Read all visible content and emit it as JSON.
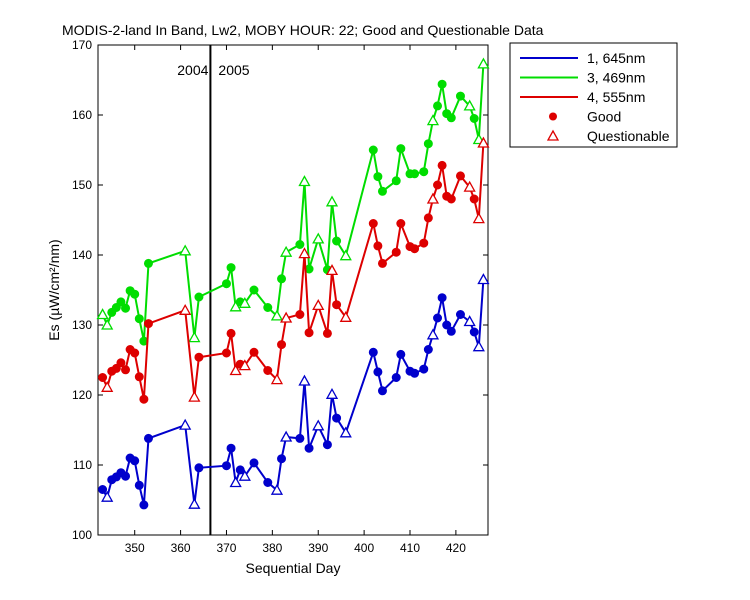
{
  "chart_data": {
    "type": "line",
    "title": "MODIS-2-land In Band,  Lw2, MOBY HOUR: 22;  Good and Questionable Data",
    "xlabel": "Sequential Day",
    "ylabel": "Es (µW/cm²/nm)",
    "xlim": [
      342,
      427
    ],
    "ylim": [
      100,
      170
    ],
    "xticks": [
      350,
      360,
      370,
      380,
      390,
      400,
      410,
      420
    ],
    "yticks": [
      100,
      110,
      120,
      130,
      140,
      150,
      160,
      170
    ],
    "grid": false,
    "year_divider": {
      "x": 366.5,
      "left_label": "2004",
      "right_label": "2005"
    },
    "legend": {
      "position": "outside-top-right",
      "entries": [
        {
          "label": "1, 645nm",
          "kind": "line",
          "color": "#0000cc"
        },
        {
          "label": "3, 469nm",
          "kind": "line",
          "color": "#00dd00"
        },
        {
          "label": "4, 555nm",
          "kind": "line",
          "color": "#dd0000"
        },
        {
          "label": "Good",
          "kind": "dot",
          "color": "#dd0000"
        },
        {
          "label": "Questionable",
          "kind": "triangle",
          "color": "#dd0000"
        }
      ]
    },
    "series": [
      {
        "name": "1, 645nm",
        "color": "#0000cc",
        "points": [
          [
            343,
            106.5,
            "G"
          ],
          [
            344,
            105.4,
            "Q"
          ],
          [
            345,
            107.9,
            "G"
          ],
          [
            346,
            108.3,
            "G"
          ],
          [
            347,
            108.9,
            "G"
          ],
          [
            348,
            108.4,
            "G"
          ],
          [
            349,
            111.0,
            "G"
          ],
          [
            350,
            110.6,
            "G"
          ],
          [
            351,
            107.1,
            "G"
          ],
          [
            352,
            104.3,
            "G"
          ],
          [
            353,
            113.8,
            "G"
          ],
          [
            361,
            115.7,
            "Q"
          ],
          [
            363,
            104.4,
            "Q"
          ],
          [
            364,
            109.6,
            "G"
          ],
          [
            370,
            109.9,
            "G"
          ],
          [
            371,
            112.4,
            "G"
          ],
          [
            372,
            107.5,
            "Q"
          ],
          [
            373,
            109.3,
            "G"
          ],
          [
            374,
            108.4,
            "Q"
          ],
          [
            376,
            110.3,
            "G"
          ],
          [
            379,
            107.5,
            "G"
          ],
          [
            381,
            106.4,
            "Q"
          ],
          [
            382,
            110.9,
            "G"
          ],
          [
            383,
            114.0,
            "Q"
          ],
          [
            386,
            113.8,
            "G"
          ],
          [
            387,
            122.0,
            "Q"
          ],
          [
            388,
            112.4,
            "G"
          ],
          [
            390,
            115.6,
            "Q"
          ],
          [
            392,
            112.9,
            "G"
          ],
          [
            393,
            120.1,
            "Q"
          ],
          [
            394,
            116.7,
            "G"
          ],
          [
            396,
            114.6,
            "Q"
          ],
          [
            402,
            126.1,
            "G"
          ],
          [
            403,
            123.3,
            "G"
          ],
          [
            404,
            120.6,
            "G"
          ],
          [
            407,
            122.5,
            "G"
          ],
          [
            408,
            125.8,
            "G"
          ],
          [
            410,
            123.4,
            "G"
          ],
          [
            411,
            123.1,
            "G"
          ],
          [
            413,
            123.7,
            "G"
          ],
          [
            414,
            126.5,
            "G"
          ],
          [
            415,
            128.6,
            "Q"
          ],
          [
            416,
            131.0,
            "G"
          ],
          [
            417,
            133.9,
            "G"
          ],
          [
            418,
            130.0,
            "G"
          ],
          [
            419,
            129.1,
            "G"
          ],
          [
            421,
            131.5,
            "G"
          ],
          [
            423,
            130.5,
            "Q"
          ],
          [
            424,
            129.0,
            "G"
          ],
          [
            425,
            126.9,
            "Q"
          ],
          [
            426,
            136.5,
            "Q"
          ]
        ]
      },
      {
        "name": "3, 469nm",
        "color": "#00dd00",
        "points": [
          [
            343,
            131.5,
            "Q"
          ],
          [
            344,
            130.0,
            "Q"
          ],
          [
            345,
            131.8,
            "G"
          ],
          [
            346,
            132.5,
            "G"
          ],
          [
            347,
            133.3,
            "G"
          ],
          [
            348,
            132.4,
            "G"
          ],
          [
            349,
            134.9,
            "G"
          ],
          [
            350,
            134.4,
            "G"
          ],
          [
            351,
            130.9,
            "G"
          ],
          [
            352,
            127.7,
            "G"
          ],
          [
            353,
            138.8,
            "G"
          ],
          [
            361,
            140.6,
            "Q"
          ],
          [
            363,
            128.2,
            "Q"
          ],
          [
            364,
            134.0,
            "G"
          ],
          [
            370,
            135.9,
            "G"
          ],
          [
            371,
            138.2,
            "G"
          ],
          [
            372,
            132.6,
            "Q"
          ],
          [
            373,
            133.3,
            "G"
          ],
          [
            374,
            133.1,
            "Q"
          ],
          [
            376,
            135.0,
            "G"
          ],
          [
            379,
            132.5,
            "G"
          ],
          [
            381,
            131.3,
            "Q"
          ],
          [
            382,
            136.6,
            "G"
          ],
          [
            383,
            140.4,
            "Q"
          ],
          [
            386,
            141.5,
            "G"
          ],
          [
            387,
            150.5,
            "Q"
          ],
          [
            388,
            138.0,
            "G"
          ],
          [
            390,
            142.3,
            "Q"
          ],
          [
            392,
            137.9,
            "G"
          ],
          [
            393,
            147.6,
            "Q"
          ],
          [
            394,
            142.0,
            "G"
          ],
          [
            396,
            139.9,
            "Q"
          ],
          [
            402,
            155.0,
            "G"
          ],
          [
            403,
            151.2,
            "G"
          ],
          [
            404,
            149.1,
            "G"
          ],
          [
            407,
            150.6,
            "G"
          ],
          [
            408,
            155.2,
            "G"
          ],
          [
            410,
            151.6,
            "G"
          ],
          [
            411,
            151.6,
            "G"
          ],
          [
            413,
            151.9,
            "G"
          ],
          [
            414,
            155.9,
            "G"
          ],
          [
            415,
            159.2,
            "Q"
          ],
          [
            416,
            161.3,
            "G"
          ],
          [
            417,
            164.4,
            "G"
          ],
          [
            418,
            160.2,
            "G"
          ],
          [
            419,
            159.6,
            "G"
          ],
          [
            421,
            162.7,
            "G"
          ],
          [
            423,
            161.3,
            "Q"
          ],
          [
            424,
            159.5,
            "G"
          ],
          [
            425,
            156.5,
            "Q"
          ],
          [
            426,
            167.3,
            "Q"
          ]
        ]
      },
      {
        "name": "4, 555nm",
        "color": "#dd0000",
        "points": [
          [
            343,
            122.5,
            "G"
          ],
          [
            344,
            121.1,
            "Q"
          ],
          [
            345,
            123.4,
            "G"
          ],
          [
            346,
            123.8,
            "G"
          ],
          [
            347,
            124.6,
            "G"
          ],
          [
            348,
            123.6,
            "G"
          ],
          [
            349,
            126.5,
            "G"
          ],
          [
            350,
            126.0,
            "G"
          ],
          [
            351,
            122.6,
            "G"
          ],
          [
            352,
            119.4,
            "G"
          ],
          [
            353,
            130.2,
            "G"
          ],
          [
            361,
            132.1,
            "Q"
          ],
          [
            363,
            119.7,
            "Q"
          ],
          [
            364,
            125.4,
            "G"
          ],
          [
            370,
            126.0,
            "G"
          ],
          [
            371,
            128.8,
            "G"
          ],
          [
            372,
            123.5,
            "Q"
          ],
          [
            373,
            124.4,
            "G"
          ],
          [
            374,
            124.2,
            "Q"
          ],
          [
            376,
            126.1,
            "G"
          ],
          [
            379,
            123.5,
            "G"
          ],
          [
            381,
            122.2,
            "Q"
          ],
          [
            382,
            127.2,
            "G"
          ],
          [
            383,
            131.0,
            "Q"
          ],
          [
            386,
            131.5,
            "G"
          ],
          [
            387,
            140.2,
            "Q"
          ],
          [
            388,
            128.9,
            "G"
          ],
          [
            390,
            132.8,
            "Q"
          ],
          [
            392,
            128.8,
            "G"
          ],
          [
            393,
            137.8,
            "Q"
          ],
          [
            394,
            132.9,
            "G"
          ],
          [
            396,
            131.1,
            "Q"
          ],
          [
            402,
            144.5,
            "G"
          ],
          [
            403,
            141.3,
            "G"
          ],
          [
            404,
            138.8,
            "G"
          ],
          [
            407,
            140.4,
            "G"
          ],
          [
            408,
            144.5,
            "G"
          ],
          [
            410,
            141.2,
            "G"
          ],
          [
            411,
            140.9,
            "G"
          ],
          [
            413,
            141.7,
            "G"
          ],
          [
            414,
            145.3,
            "G"
          ],
          [
            415,
            148.0,
            "Q"
          ],
          [
            416,
            150.0,
            "G"
          ],
          [
            417,
            152.8,
            "G"
          ],
          [
            418,
            148.4,
            "G"
          ],
          [
            419,
            148.0,
            "G"
          ],
          [
            421,
            151.3,
            "G"
          ],
          [
            423,
            149.7,
            "Q"
          ],
          [
            424,
            148.0,
            "G"
          ],
          [
            425,
            145.2,
            "Q"
          ],
          [
            426,
            156.0,
            "Q"
          ]
        ]
      }
    ]
  }
}
